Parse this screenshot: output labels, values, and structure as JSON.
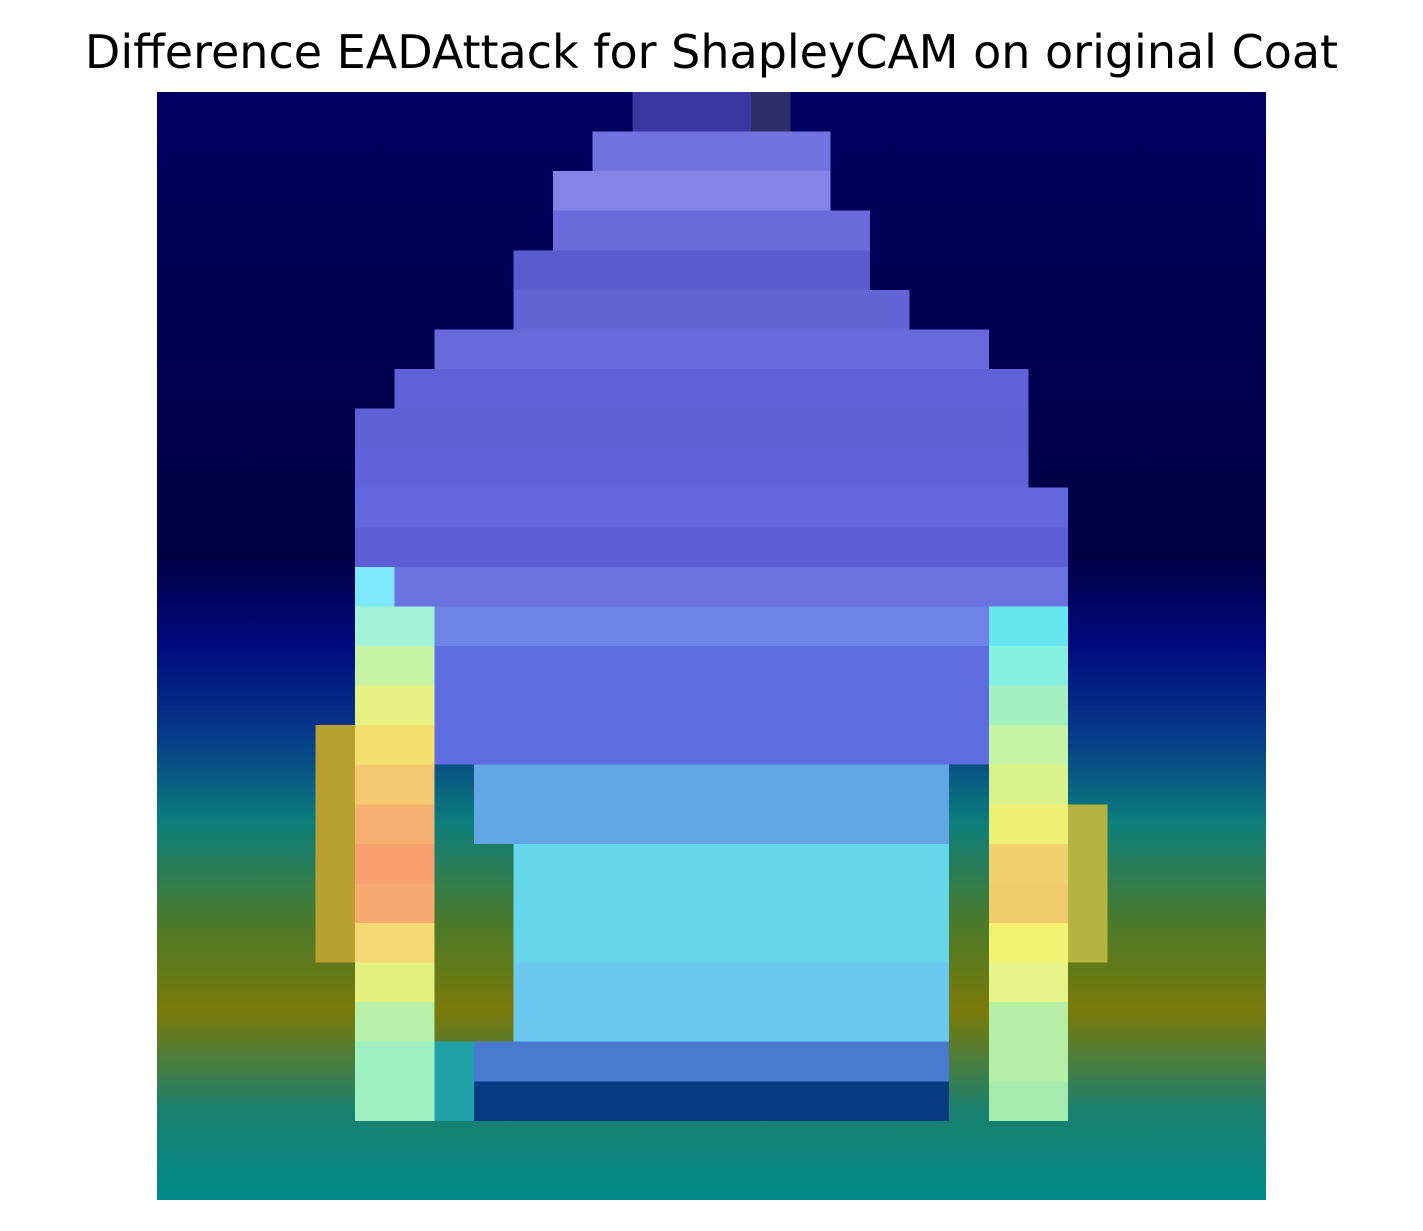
{
  "title": "Difference EADAttack for ShapleyCAM on original Coat",
  "image": {
    "kind": "Grad-CAM style difference heatmap overlaid on a low-resolution coat silhouette",
    "grid": "28x28",
    "colormap": "jet (blue low → cyan → yellow/orange high)",
    "accent_colors": {
      "background_low": "#00005a",
      "coat_body": "#6b6fe6",
      "sleeve_high": "#f5a070",
      "cyan_mid": "#66e5ee"
    }
  }
}
